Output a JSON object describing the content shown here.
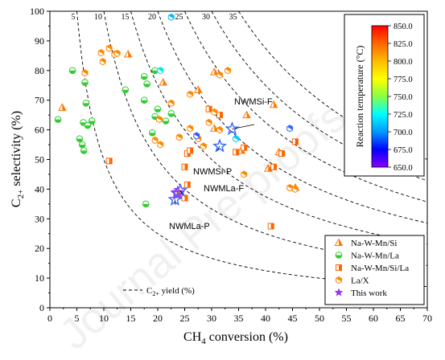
{
  "chart_data": {
    "type": "scatter",
    "xlabel_main": "CH",
    "xlabel_sub": "4",
    "xlabel_tail": " conversion (%)",
    "ylabel_main": "C",
    "ylabel_sub": "2+",
    "ylabel_tail": " selectivity (%)",
    "xlim": [
      0,
      70
    ],
    "ylim": [
      0,
      100
    ],
    "xticks": [
      0,
      5,
      10,
      15,
      20,
      25,
      30,
      35,
      40,
      45,
      50,
      55,
      60,
      65,
      70
    ],
    "yticks": [
      0,
      10,
      20,
      30,
      40,
      50,
      60,
      70,
      80,
      90,
      100
    ],
    "grid": false,
    "watermark": "Journal Pre-proofs",
    "yield_curves": [
      5,
      10,
      15,
      20,
      25,
      30,
      35
    ],
    "yield_legend": {
      "pre": "C",
      "sub": "2+",
      "post": " yield (%)"
    },
    "colorbar": {
      "title": "Reaction temperature (°C)",
      "min": 650,
      "max": 850,
      "ticks": [
        "850.0",
        "825.0",
        "800.0",
        "775.0",
        "750.0",
        "725.0",
        "700.0",
        "675.0",
        "650.0"
      ],
      "colors": [
        "#ff0000",
        "#ff6600",
        "#ffbb00",
        "#ffff00",
        "#88ff44",
        "#00ffff",
        "#0099ff",
        "#0000ff",
        "#8800ff"
      ]
    },
    "legend": [
      "Na-W-Mn/Si",
      "Na-W-Mn/La",
      "Na-W-Mn/Si/La",
      "La/X",
      "This work"
    ],
    "legend_position": "bottom-right",
    "annotations": [
      {
        "text": "NWMSi-F",
        "x": 33.8,
        "y": 60.3
      },
      {
        "text": "NWMSi-P",
        "x": 31.5,
        "y": 54.5
      },
      {
        "text": "NWMLa-F",
        "x": 24.2,
        "y": 39.5
      },
      {
        "text": "NWMLa-P",
        "x": 23.2,
        "y": 36.5
      }
    ],
    "series": [
      {
        "name": "Na-W-Mn/Si",
        "marker": "triangle",
        "color": "#ff7700",
        "points": [
          [
            2.3,
            67.5
          ],
          [
            27.5,
            73.5
          ],
          [
            30.5,
            60.5
          ],
          [
            35.5,
            53
          ],
          [
            36.5,
            65
          ],
          [
            40.5,
            47
          ],
          [
            42.5,
            52.5
          ],
          [
            30.5,
            79.5
          ],
          [
            21,
            76
          ],
          [
            14.5,
            85.5
          ],
          [
            41.5,
            68.5
          ],
          [
            45.5,
            40.5
          ]
        ]
      },
      {
        "name": "Na-W-Mn/La",
        "marker": "circle",
        "color": "#33cc33",
        "points": [
          [
            1.5,
            63.5
          ],
          [
            4.2,
            80
          ],
          [
            6.5,
            76
          ],
          [
            6.7,
            69
          ],
          [
            6.2,
            62.5
          ],
          [
            7,
            61.5
          ],
          [
            7.8,
            63
          ],
          [
            6,
            55
          ],
          [
            5.5,
            57
          ],
          [
            6.3,
            53
          ],
          [
            14,
            73.5
          ],
          [
            17.5,
            78
          ],
          [
            18,
            75.5
          ],
          [
            17.5,
            70
          ],
          [
            19.5,
            64.5
          ],
          [
            19,
            59
          ],
          [
            20,
            67
          ],
          [
            21.5,
            63
          ],
          [
            22.5,
            65.5
          ],
          [
            19.5,
            80
          ],
          [
            17.8,
            35
          ]
        ]
      },
      {
        "name": "Na-W-Mn/Si/La",
        "marker": "square",
        "color": "#ff6600",
        "points": [
          [
            11,
            49.5
          ],
          [
            25,
            47.5
          ],
          [
            25.5,
            52
          ],
          [
            25.5,
            41.5
          ],
          [
            26,
            53
          ],
          [
            29.5,
            67
          ],
          [
            31.5,
            65
          ],
          [
            34.5,
            52.5
          ],
          [
            36,
            54
          ],
          [
            41.5,
            47.5
          ],
          [
            43,
            52
          ],
          [
            45.5,
            56
          ],
          [
            41,
            27.5
          ],
          [
            23.5,
            38.5
          ],
          [
            25,
            37
          ]
        ]
      },
      {
        "name": "La/X",
        "marker": "hexagon",
        "color": "#ff8800",
        "points": [
          [
            6.5,
            79.2
          ],
          [
            9.5,
            86
          ],
          [
            9.8,
            83
          ],
          [
            11,
            87.5
          ],
          [
            12,
            85.5
          ],
          [
            12.5,
            85.8
          ],
          [
            19.5,
            56.5
          ],
          [
            20.3,
            63.5
          ],
          [
            22.5,
            69
          ],
          [
            24,
            57.5
          ],
          [
            26,
            60.5
          ],
          [
            27.5,
            57
          ],
          [
            28.5,
            54.5
          ],
          [
            29.5,
            62.5
          ],
          [
            31.5,
            60
          ],
          [
            30.5,
            66
          ],
          [
            31.5,
            78.5
          ],
          [
            33,
            80
          ],
          [
            36,
            45
          ],
          [
            44.5,
            40.5
          ],
          [
            45.5,
            40
          ],
          [
            20.5,
            55
          ],
          [
            26,
            72
          ]
        ]
      }
    ],
    "this_work": {
      "name": "This work",
      "color": "#3366ff",
      "points": [
        [
          33.8,
          60.3
        ],
        [
          31.5,
          54.5
        ],
        [
          24.2,
          39.5
        ],
        [
          23.2,
          36.5
        ],
        [
          23.7,
          38.5
        ]
      ]
    },
    "temperature_samples": [
      {
        "x": 22.5,
        "y": 98,
        "color": "#00bbff"
      },
      {
        "x": 44.5,
        "y": 60.5,
        "color": "#3366ff"
      },
      {
        "x": 34.5,
        "y": 57,
        "color": "#00ccff"
      },
      {
        "x": 27.2,
        "y": 58,
        "color": "#3355ff"
      },
      {
        "x": 20.5,
        "y": 80,
        "color": "#00e5e5"
      }
    ]
  }
}
